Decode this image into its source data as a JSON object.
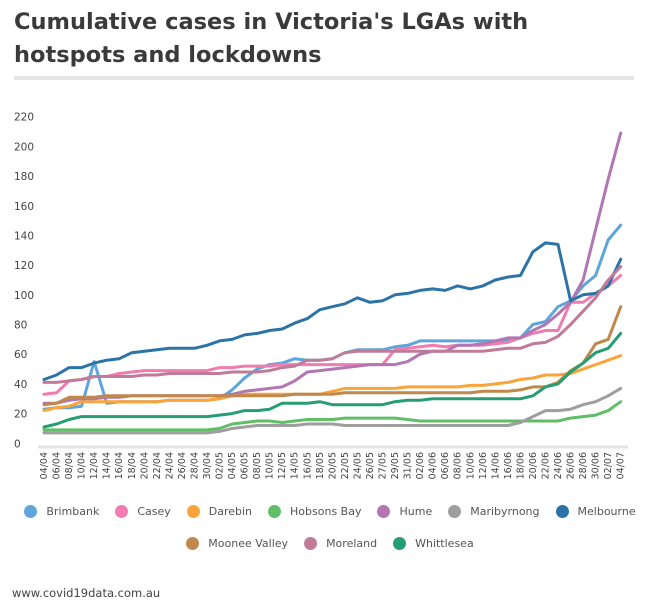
{
  "title": "Cumulative cases in Victoria's LGAs with hotspots and lockdowns",
  "footer": "www.covid19data.com.au",
  "chart_data": {
    "type": "line",
    "title": "Cumulative cases in Victoria's LGAs with hotspots and lockdowns",
    "xlabel": "",
    "ylabel": "",
    "ylim": [
      0,
      220
    ],
    "yticks": [
      0,
      20,
      40,
      60,
      80,
      100,
      120,
      140,
      160,
      180,
      200,
      220
    ],
    "grid": false,
    "legend_position": "bottom",
    "categories": [
      "04/04",
      "06/04",
      "08/04",
      "10/04",
      "12/04",
      "14/04",
      "16/04",
      "18/04",
      "20/04",
      "22/04",
      "24/04",
      "26/04",
      "28/04",
      "30/04",
      "02/05",
      "04/05",
      "06/05",
      "08/05",
      "10/05",
      "12/05",
      "14/05",
      "16/05",
      "18/05",
      "20/05",
      "22/05",
      "24/05",
      "26/05",
      "27/05",
      "29/05",
      "31/05",
      "02/06",
      "04/06",
      "06/06",
      "08/06",
      "10/06",
      "12/06",
      "14/06",
      "16/06",
      "18/06",
      "20/06",
      "22/06",
      "24/06",
      "26/06",
      "28/06",
      "30/06",
      "02/07",
      "04/07"
    ],
    "series": [
      {
        "name": "Brimbank",
        "color": "#5DA5DA",
        "values": [
          23,
          24,
          24,
          25,
          55,
          27,
          28,
          28,
          28,
          28,
          29,
          29,
          29,
          29,
          30,
          36,
          44,
          50,
          53,
          54,
          57,
          56,
          56,
          57,
          61,
          63,
          63,
          63,
          65,
          66,
          69,
          69,
          69,
          69,
          69,
          69,
          69,
          69,
          71,
          80,
          82,
          92,
          96,
          106,
          113,
          137,
          147
        ]
      },
      {
        "name": "Casey",
        "color": "#F17CB0",
        "values": [
          33,
          34,
          42,
          43,
          45,
          45,
          47,
          48,
          49,
          49,
          49,
          49,
          49,
          49,
          51,
          51,
          52,
          52,
          52,
          53,
          53,
          53,
          53,
          53,
          53,
          53,
          53,
          53,
          63,
          64,
          65,
          66,
          65,
          66,
          66,
          66,
          67,
          68,
          71,
          74,
          76,
          76,
          95,
          95,
          101,
          106,
          113
        ]
      },
      {
        "name": "Darebin",
        "color": "#FAA43A",
        "values": [
          22,
          24,
          25,
          28,
          28,
          28,
          28,
          28,
          28,
          28,
          29,
          29,
          29,
          29,
          30,
          32,
          33,
          33,
          33,
          33,
          33,
          33,
          33,
          35,
          37,
          37,
          37,
          37,
          37,
          38,
          38,
          38,
          38,
          38,
          39,
          39,
          40,
          41,
          43,
          44,
          46,
          46,
          47,
          50,
          53,
          56,
          59
        ]
      },
      {
        "name": "Hobsons Bay",
        "color": "#60BD68",
        "values": [
          9,
          9,
          9,
          9,
          9,
          9,
          9,
          9,
          9,
          9,
          9,
          9,
          9,
          9,
          10,
          13,
          14,
          15,
          15,
          14,
          15,
          16,
          16,
          16,
          17,
          17,
          17,
          17,
          17,
          16,
          15,
          15,
          15,
          15,
          15,
          15,
          15,
          15,
          15,
          15,
          15,
          15,
          17,
          18,
          19,
          22,
          28
        ]
      },
      {
        "name": "Hume",
        "color": "#B276B2",
        "values": [
          27,
          27,
          29,
          30,
          30,
          31,
          31,
          32,
          32,
          32,
          32,
          32,
          32,
          32,
          32,
          33,
          35,
          36,
          37,
          38,
          42,
          48,
          49,
          50,
          51,
          52,
          53,
          53,
          53,
          55,
          60,
          62,
          62,
          66,
          66,
          67,
          69,
          71,
          71,
          76,
          80,
          87,
          95,
          110,
          144,
          178,
          209
        ]
      },
      {
        "name": "Maribyrnong",
        "color": "#9E9E9E",
        "values": [
          7,
          7,
          7,
          7,
          7,
          7,
          7,
          7,
          7,
          7,
          7,
          7,
          7,
          7,
          8,
          10,
          11,
          12,
          12,
          12,
          12,
          13,
          13,
          13,
          12,
          12,
          12,
          12,
          12,
          12,
          12,
          12,
          12,
          12,
          12,
          12,
          12,
          12,
          14,
          18,
          22,
          22,
          23,
          26,
          28,
          32,
          37
        ]
      },
      {
        "name": "Melbourne",
        "color": "#2C73A8",
        "values": [
          43,
          46,
          51,
          51,
          54,
          56,
          57,
          61,
          62,
          63,
          64,
          64,
          64,
          66,
          69,
          70,
          73,
          74,
          76,
          77,
          81,
          84,
          90,
          92,
          94,
          98,
          95,
          96,
          100,
          101,
          103,
          104,
          103,
          106,
          104,
          106,
          110,
          112,
          113,
          129,
          135,
          134,
          96,
          100,
          101,
          106,
          124
        ]
      },
      {
        "name": "Moonee Valley",
        "color": "#C0884A",
        "values": [
          26,
          27,
          31,
          31,
          31,
          32,
          32,
          32,
          32,
          32,
          32,
          32,
          32,
          32,
          32,
          32,
          32,
          32,
          32,
          32,
          33,
          33,
          33,
          33,
          34,
          34,
          34,
          34,
          34,
          34,
          34,
          34,
          34,
          34,
          34,
          35,
          35,
          35,
          36,
          38,
          38,
          41,
          49,
          54,
          67,
          70,
          92
        ]
      },
      {
        "name": "Moreland",
        "color": "#C07B98",
        "values": [
          41,
          41,
          42,
          43,
          45,
          45,
          45,
          45,
          46,
          46,
          47,
          47,
          47,
          47,
          47,
          48,
          48,
          48,
          49,
          51,
          52,
          56,
          56,
          57,
          61,
          62,
          62,
          62,
          62,
          62,
          62,
          62,
          62,
          62,
          62,
          62,
          63,
          64,
          64,
          67,
          68,
          72,
          80,
          89,
          98,
          110,
          119
        ]
      },
      {
        "name": "Whittlesea",
        "color": "#269E72",
        "values": [
          11,
          13,
          16,
          18,
          18,
          18,
          18,
          18,
          18,
          18,
          18,
          18,
          18,
          18,
          19,
          20,
          22,
          22,
          23,
          27,
          27,
          27,
          28,
          26,
          26,
          26,
          26,
          26,
          28,
          29,
          29,
          30,
          30,
          30,
          30,
          30,
          30,
          30,
          30,
          32,
          38,
          40,
          48,
          54,
          61,
          64,
          74
        ]
      }
    ]
  }
}
